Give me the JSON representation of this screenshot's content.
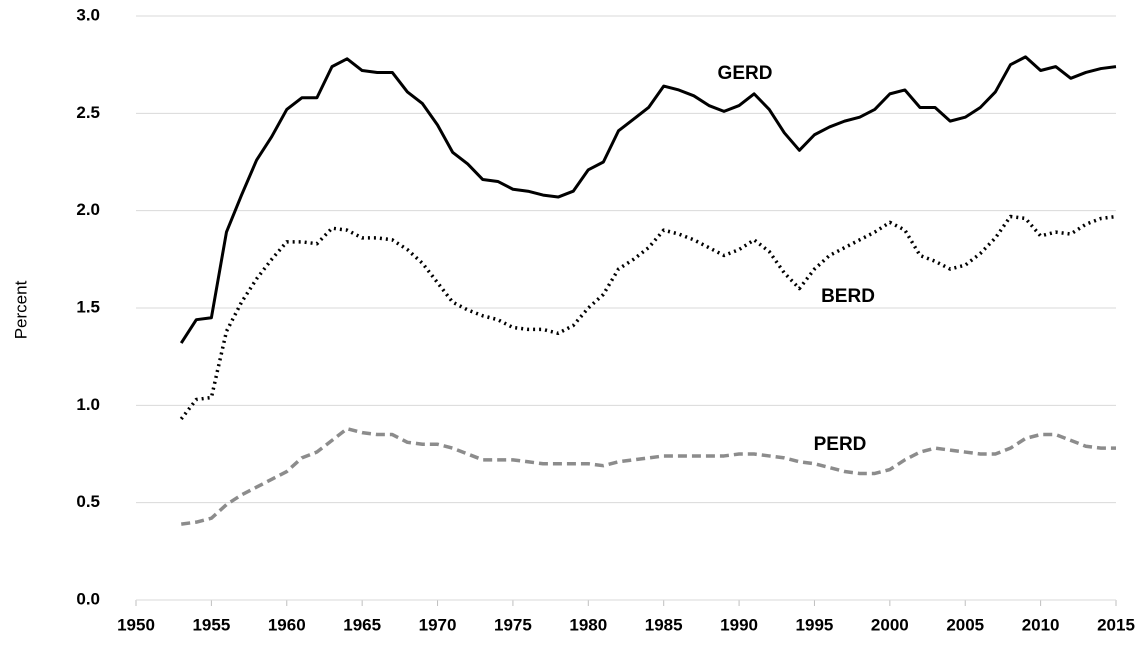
{
  "chart_data": {
    "type": "line",
    "y_label": "Percent",
    "x": [
      1953,
      1954,
      1955,
      1956,
      1957,
      1958,
      1959,
      1960,
      1961,
      1962,
      1963,
      1964,
      1965,
      1966,
      1967,
      1968,
      1969,
      1970,
      1971,
      1972,
      1973,
      1974,
      1975,
      1976,
      1977,
      1978,
      1979,
      1980,
      1981,
      1982,
      1983,
      1984,
      1985,
      1986,
      1987,
      1988,
      1989,
      1990,
      1991,
      1992,
      1993,
      1994,
      1995,
      1996,
      1997,
      1998,
      1999,
      2000,
      2001,
      2002,
      2003,
      2004,
      2005,
      2006,
      2007,
      2008,
      2009,
      2010,
      2011,
      2012,
      2013,
      2014,
      2015
    ],
    "series": [
      {
        "name": "GERD",
        "color": "#000000",
        "style": "solid",
        "values": [
          1.32,
          1.44,
          1.45,
          1.89,
          2.08,
          2.26,
          2.38,
          2.52,
          2.58,
          2.58,
          2.74,
          2.78,
          2.72,
          2.71,
          2.71,
          2.61,
          2.55,
          2.44,
          2.3,
          2.24,
          2.16,
          2.15,
          2.11,
          2.1,
          2.08,
          2.07,
          2.1,
          2.21,
          2.25,
          2.41,
          2.47,
          2.53,
          2.64,
          2.62,
          2.59,
          2.54,
          2.51,
          2.54,
          2.6,
          2.52,
          2.4,
          2.31,
          2.39,
          2.43,
          2.46,
          2.48,
          2.52,
          2.6,
          2.62,
          2.53,
          2.53,
          2.46,
          2.48,
          2.53,
          2.61,
          2.75,
          2.79,
          2.72,
          2.74,
          2.68,
          2.71,
          2.73,
          2.74
        ]
      },
      {
        "name": "BERD",
        "color": "#000000",
        "style": "dotted",
        "values": [
          0.93,
          1.03,
          1.04,
          1.38,
          1.53,
          1.65,
          1.75,
          1.84,
          1.84,
          1.83,
          1.91,
          1.9,
          1.86,
          1.86,
          1.85,
          1.8,
          1.73,
          1.63,
          1.53,
          1.49,
          1.46,
          1.44,
          1.4,
          1.39,
          1.39,
          1.37,
          1.41,
          1.5,
          1.57,
          1.7,
          1.75,
          1.81,
          1.9,
          1.88,
          1.85,
          1.81,
          1.77,
          1.8,
          1.85,
          1.79,
          1.68,
          1.6,
          1.7,
          1.77,
          1.81,
          1.85,
          1.89,
          1.94,
          1.9,
          1.77,
          1.74,
          1.7,
          1.72,
          1.78,
          1.86,
          1.97,
          1.96,
          1.87,
          1.89,
          1.88,
          1.93,
          1.96,
          1.97
        ]
      },
      {
        "name": "PERD",
        "color": "#8c8c8c",
        "style": "dashed",
        "values": [
          0.39,
          0.4,
          0.42,
          0.49,
          0.54,
          0.58,
          0.62,
          0.66,
          0.73,
          0.76,
          0.82,
          0.88,
          0.86,
          0.85,
          0.85,
          0.81,
          0.8,
          0.8,
          0.78,
          0.75,
          0.72,
          0.72,
          0.72,
          0.71,
          0.7,
          0.7,
          0.7,
          0.7,
          0.69,
          0.71,
          0.72,
          0.73,
          0.74,
          0.74,
          0.74,
          0.74,
          0.74,
          0.75,
          0.75,
          0.74,
          0.73,
          0.71,
          0.7,
          0.68,
          0.66,
          0.65,
          0.65,
          0.67,
          0.72,
          0.76,
          0.78,
          0.77,
          0.76,
          0.75,
          0.75,
          0.78,
          0.83,
          0.85,
          0.85,
          0.82,
          0.79,
          0.78,
          0.78
        ]
      }
    ],
    "xlim": [
      1950,
      2015
    ],
    "xticks": [
      1950,
      1955,
      1960,
      1965,
      1970,
      1975,
      1980,
      1985,
      1990,
      1995,
      2000,
      2005,
      2010,
      2015
    ],
    "ylim": [
      0,
      3
    ],
    "yticks": [
      {
        "value": 0,
        "label": "0.0"
      },
      0.5,
      {
        "value": 1,
        "label": "1.0"
      },
      1.5,
      {
        "value": 2,
        "label": "2.0"
      },
      2.5,
      {
        "value": 3,
        "label": "3.0"
      }
    ],
    "grid": true
  }
}
